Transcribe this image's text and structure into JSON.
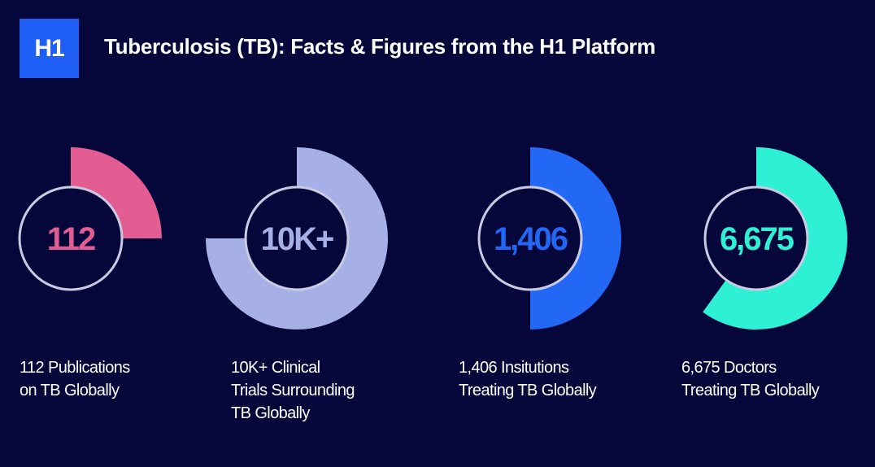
{
  "header": {
    "logo_text": "H1",
    "title": "Tuberculosis (TB): Facts & Figures from the H1 Platform"
  },
  "chart_data": {
    "type": "radial-gauge",
    "items": [
      {
        "value_label": "112",
        "fill_fraction": 0.25,
        "color": "#e35c92",
        "caption_lines": [
          "112 Publications",
          "on TB Globally"
        ]
      },
      {
        "value_label": "10K+",
        "fill_fraction": 0.75,
        "color": "#a6b0e6",
        "caption_lines": [
          "10K+ Clinical",
          "Trials Surrounding",
          "TB Globally"
        ]
      },
      {
        "value_label": "1,406",
        "fill_fraction": 0.5,
        "color": "#2368f5",
        "caption_lines": [
          "1,406 Insitutions",
          "Treating TB Globally"
        ]
      },
      {
        "value_label": "6,675",
        "fill_fraction": 0.6,
        "color": "#2ef0d4",
        "caption_lines": [
          "6,675 Doctors",
          "Treating TB Globally"
        ]
      }
    ]
  },
  "colors": {
    "background": "#05063a",
    "brand_blue": "#1f5ff5",
    "inner_circle_stroke": "#c9cbe3"
  }
}
